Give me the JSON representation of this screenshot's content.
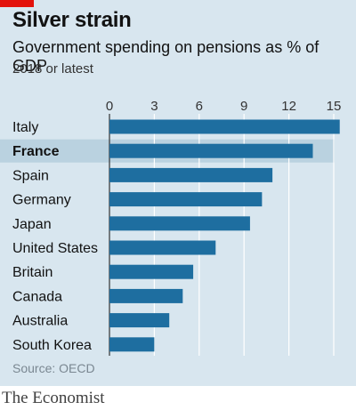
{
  "header": {
    "title": "Silver strain",
    "subtitle": "Government spending on pensions as % of GDP",
    "note": "2018 or latest"
  },
  "footer": {
    "source": "Source: OECD",
    "brand": "The Economist"
  },
  "colors": {
    "background": "#d8e6ef",
    "bar": "#1e6ea0",
    "highlight_row": "#bad2e0",
    "accent": "#e3120b"
  },
  "chart_data": {
    "type": "bar",
    "orientation": "horizontal",
    "title": "Silver strain",
    "subtitle": "Government spending on pensions as % of GDP",
    "categories": [
      "Italy",
      "France",
      "Spain",
      "Germany",
      "Japan",
      "United States",
      "Britain",
      "Canada",
      "Australia",
      "South Korea"
    ],
    "values": [
      15.4,
      13.6,
      10.9,
      10.2,
      9.4,
      7.1,
      5.6,
      4.9,
      4.0,
      3.0
    ],
    "highlight": "France",
    "xlim": [
      0,
      15
    ],
    "xticks": [
      0,
      3,
      6,
      9,
      12,
      15
    ],
    "axis_position": "top",
    "grid": true
  }
}
